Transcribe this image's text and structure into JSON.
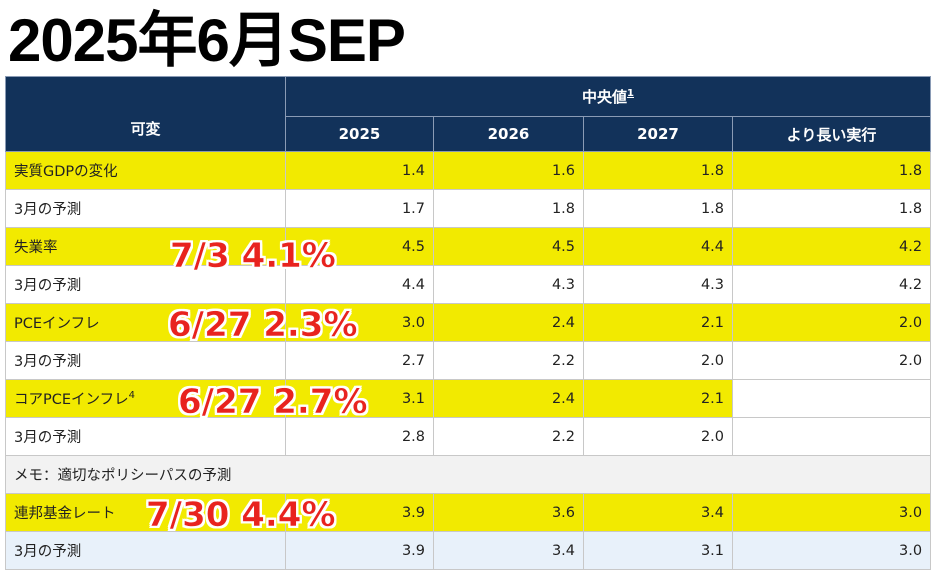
{
  "page": {
    "title": "2025年6月SEP"
  },
  "table": {
    "header": {
      "variable": "可変",
      "median": "中央値",
      "median_note": "1",
      "years": [
        "2025",
        "2026",
        "2027",
        "より長い実行"
      ]
    },
    "rows": [
      {
        "label": "実質GDPの変化",
        "values": [
          "1.4",
          "1.6",
          "1.8",
          "1.8"
        ]
      },
      {
        "label": "3月の予測",
        "values": [
          "1.7",
          "1.8",
          "1.8",
          "1.8"
        ]
      },
      {
        "label": "失業率",
        "values": [
          "4.5",
          "4.5",
          "4.4",
          "4.2"
        ]
      },
      {
        "label": "3月の予測",
        "values": [
          "4.4",
          "4.3",
          "4.3",
          "4.2"
        ]
      },
      {
        "label": "PCEインフレ",
        "values": [
          "3.0",
          "2.4",
          "2.1",
          "2.0"
        ]
      },
      {
        "label": "3月の予測",
        "values": [
          "2.7",
          "2.2",
          "2.0",
          "2.0"
        ]
      },
      {
        "label": "コアPCEインフレ",
        "note": "4",
        "values": [
          "3.1",
          "2.4",
          "2.1",
          ""
        ]
      },
      {
        "label": "3月の予測",
        "values": [
          "2.8",
          "2.2",
          "2.0",
          ""
        ]
      },
      {
        "label": "メモ：適切なポリシーパスの予測"
      },
      {
        "label": "連邦基金レート",
        "values": [
          "3.9",
          "3.6",
          "3.4",
          "3.0"
        ]
      },
      {
        "label": "3月の予測",
        "values": [
          "3.9",
          "3.4",
          "3.1",
          "3.0"
        ]
      }
    ]
  },
  "annotations": {
    "unemployment": "7/3 4.1%",
    "pce": "6/27 2.3%",
    "core_pce": "6/27 2.7%",
    "fed_funds": "7/30 4.4%",
    "color": "#e8231e"
  },
  "colors": {
    "header_bg": "#12325a",
    "highlight": "#f2ea00",
    "memo_bg": "#f2f2f2",
    "last_row_bg": "#e8f1fa"
  }
}
